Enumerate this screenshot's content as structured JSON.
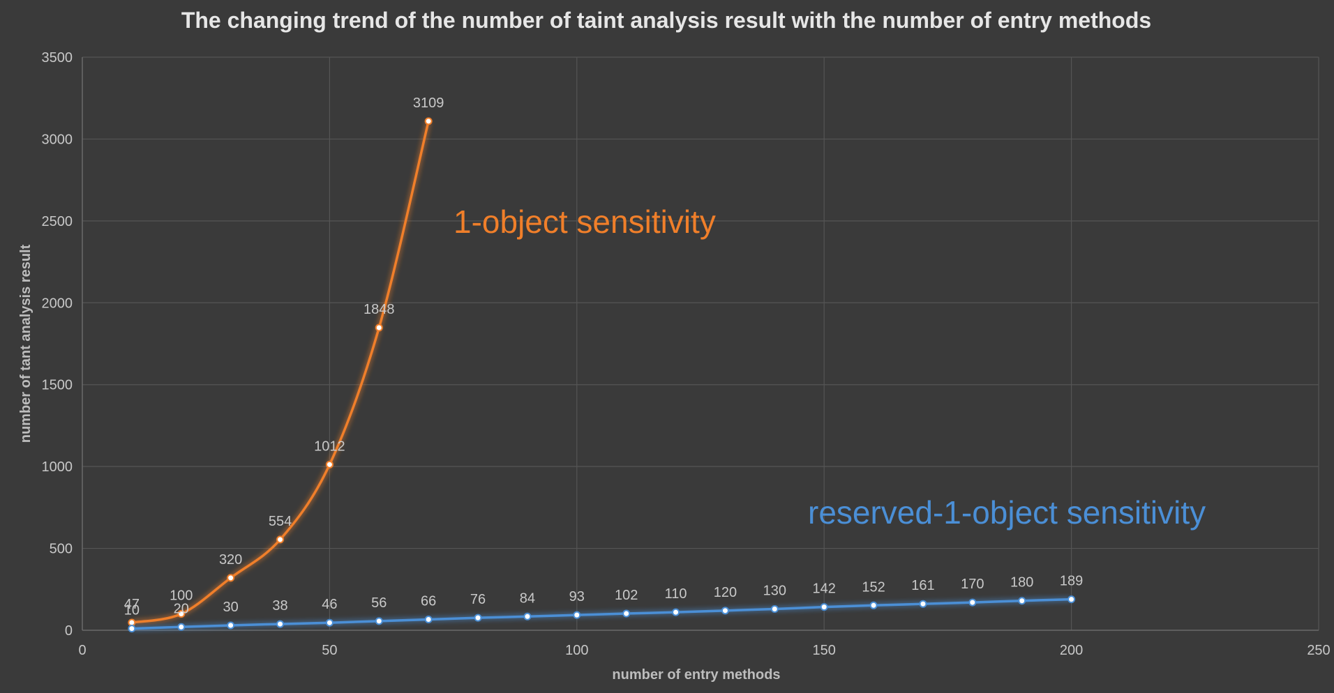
{
  "chart_data": {
    "type": "line",
    "title": "The changing trend of the number of taint analysis result with the number of entry methods",
    "xlabel": "number of entry methods",
    "ylabel": "number of tant analysis result",
    "xlim": [
      0,
      250
    ],
    "ylim": [
      0,
      3500
    ],
    "xticks": [
      0,
      50,
      100,
      150,
      200,
      250
    ],
    "yticks": [
      0,
      500,
      1000,
      1500,
      2000,
      2500,
      3000,
      3500
    ],
    "grid": true,
    "legend": "none",
    "series": [
      {
        "name": "1-object sensitivity",
        "color": "#f07f2a",
        "x": [
          10,
          20,
          30,
          40,
          50,
          60,
          70
        ],
        "y": [
          47,
          100,
          320,
          554,
          1012,
          1848,
          3109
        ]
      },
      {
        "name": "reserved-1-object sensitivity",
        "color": "#4b8fd6",
        "x": [
          10,
          20,
          30,
          40,
          50,
          60,
          70,
          80,
          90,
          100,
          110,
          120,
          130,
          140,
          150,
          160,
          170,
          180,
          190,
          200
        ],
        "y": [
          10,
          20,
          30,
          38,
          46,
          56,
          66,
          76,
          84,
          93,
          102,
          110,
          120,
          130,
          142,
          152,
          161,
          170,
          180,
          189
        ]
      }
    ]
  }
}
